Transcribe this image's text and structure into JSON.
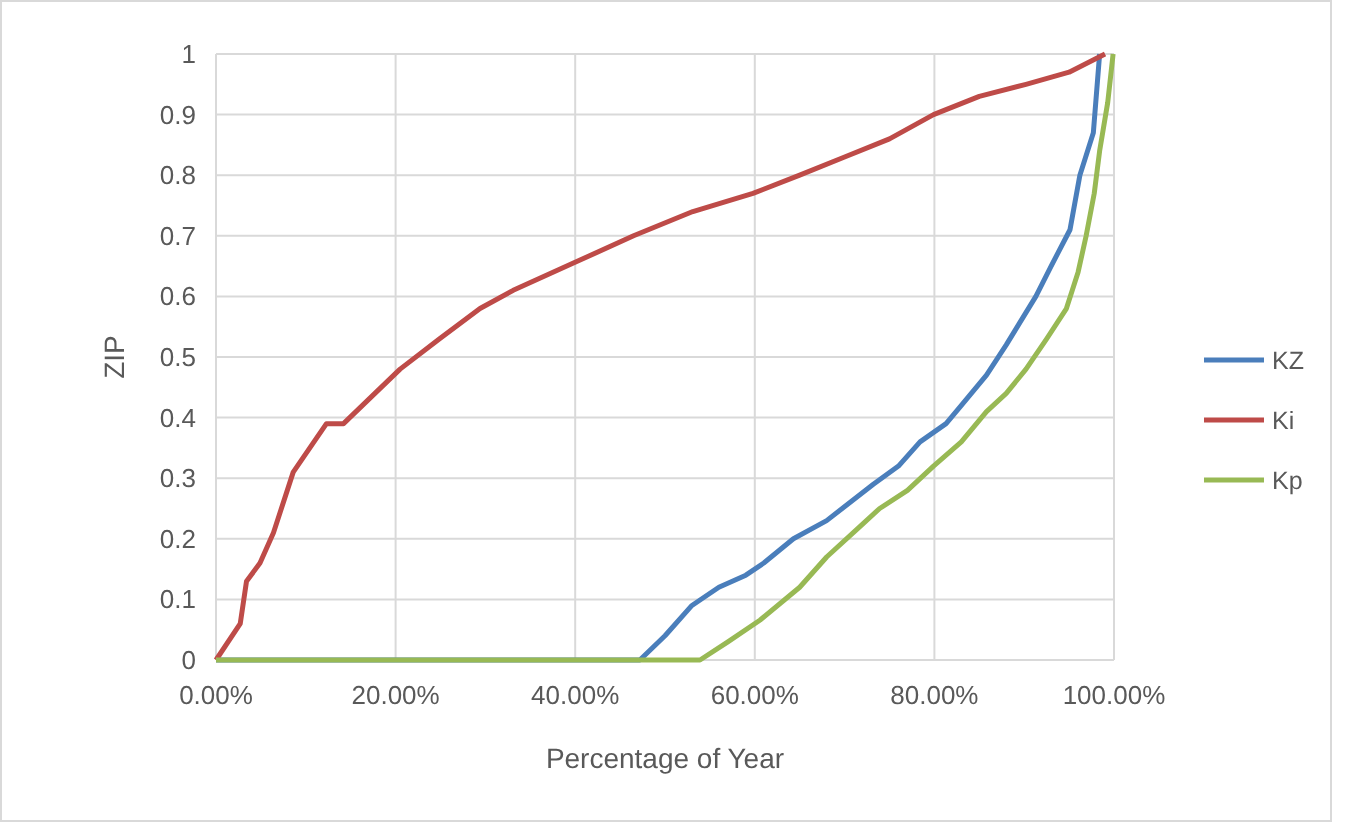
{
  "chart_data": {
    "type": "line",
    "xlabel": "Percentage of Year",
    "ylabel": "ZIP",
    "xlim": [
      0,
      100
    ],
    "ylim": [
      0,
      1
    ],
    "xticks": [
      {
        "value": 0,
        "label": "0.00%"
      },
      {
        "value": 20,
        "label": "20.00%"
      },
      {
        "value": 40,
        "label": "40.00%"
      },
      {
        "value": 60,
        "label": "60.00%"
      },
      {
        "value": 80,
        "label": "80.00%"
      },
      {
        "value": 100,
        "label": "100.00%"
      }
    ],
    "yticks": [
      0,
      0.1,
      0.2,
      0.3,
      0.4,
      0.5,
      0.6,
      0.7,
      0.8,
      0.9,
      1
    ],
    "grid": true,
    "legend": "right",
    "line_style": "solid",
    "series": [
      {
        "name": "KZ",
        "color": "#4a7ebb",
        "x": [
          0,
          47.2,
          50,
          53,
          56,
          59,
          61,
          64.3,
          68,
          73.2,
          76,
          78.4,
          81.3,
          83,
          85.8,
          88,
          91.3,
          93,
          95.1,
          96.2,
          97.7,
          98.4
        ],
        "values": [
          0,
          0,
          0.04,
          0.09,
          0.12,
          0.14,
          0.16,
          0.2,
          0.23,
          0.29,
          0.32,
          0.36,
          0.39,
          0.42,
          0.47,
          0.52,
          0.6,
          0.65,
          0.71,
          0.8,
          0.87,
          1
        ]
      },
      {
        "name": "Ki",
        "color": "#be4b48",
        "x": [
          0,
          2.7,
          3.4,
          4.9,
          6.4,
          8.6,
          12.3,
          14.2,
          20.5,
          24.9,
          29.4,
          33.1,
          39.8,
          46.5,
          53.1,
          59.8,
          65,
          70,
          75,
          79.9,
          85,
          90.2,
          95,
          99
        ],
        "values": [
          0,
          0.06,
          0.13,
          0.16,
          0.21,
          0.31,
          0.39,
          0.39,
          0.48,
          0.53,
          0.58,
          0.61,
          0.655,
          0.7,
          0.74,
          0.77,
          0.8,
          0.83,
          0.86,
          0.9,
          0.93,
          0.95,
          0.97,
          1
        ]
      },
      {
        "name": "Kp",
        "color": "#98b954",
        "x": [
          0,
          53.9,
          57,
          60.6,
          65,
          68,
          71.7,
          73.9,
          77,
          79.9,
          83,
          85.8,
          88,
          90.2,
          92.5,
          94.7,
          96,
          96.9,
          97.8,
          98.4,
          99.3,
          99.9
        ],
        "values": [
          0,
          0,
          0.03,
          0.066,
          0.12,
          0.17,
          0.22,
          0.25,
          0.28,
          0.32,
          0.36,
          0.41,
          0.44,
          0.48,
          0.53,
          0.58,
          0.64,
          0.7,
          0.77,
          0.84,
          0.92,
          1
        ]
      }
    ]
  }
}
